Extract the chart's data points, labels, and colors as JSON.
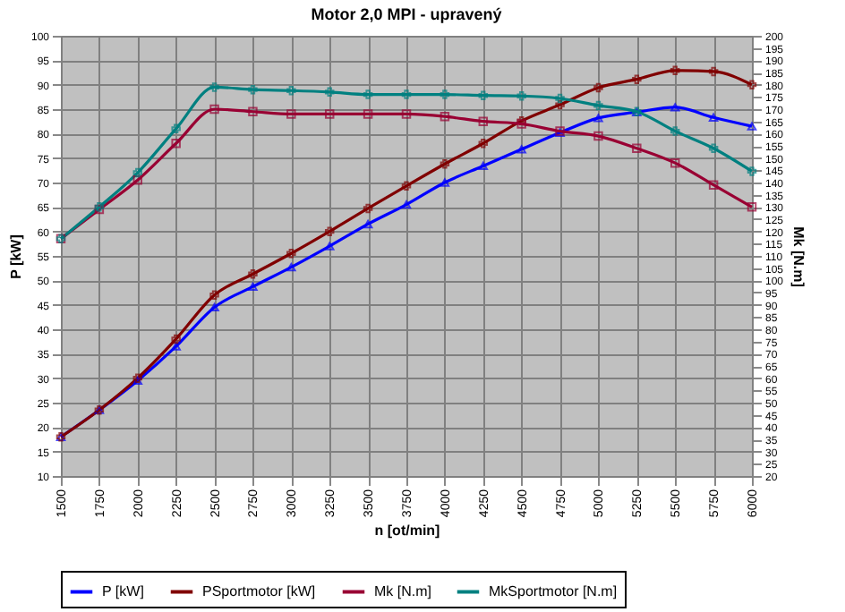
{
  "chart_data": {
    "type": "line",
    "title": "Motor 2,0 MPI - upravený",
    "xlabel": "n [ot/min]",
    "ylabel": "P [kW]",
    "y2label": "Mk [N.m]",
    "x": [
      1500,
      1750,
      2000,
      2250,
      2500,
      2750,
      3000,
      3250,
      3500,
      3750,
      4000,
      4250,
      4500,
      4750,
      5000,
      5250,
      5500,
      5750,
      6000
    ],
    "xlim": [
      1500,
      6000
    ],
    "xticks": [
      1500,
      1750,
      2000,
      2250,
      2500,
      2750,
      3000,
      3250,
      3500,
      3750,
      4000,
      4250,
      4500,
      4750,
      5000,
      5250,
      5500,
      5750,
      6000
    ],
    "ylim": [
      10,
      100
    ],
    "yticks": [
      10,
      15,
      20,
      25,
      30,
      35,
      40,
      45,
      50,
      55,
      60,
      65,
      70,
      75,
      80,
      85,
      90,
      95,
      100
    ],
    "y2lim": [
      20,
      200
    ],
    "y2ticks": [
      20,
      25,
      30,
      35,
      40,
      45,
      50,
      55,
      60,
      65,
      70,
      75,
      80,
      85,
      90,
      95,
      100,
      105,
      110,
      115,
      120,
      125,
      130,
      135,
      140,
      145,
      150,
      155,
      160,
      165,
      170,
      175,
      180,
      185,
      190,
      195,
      200
    ],
    "grid": true,
    "legend": "bottom",
    "line_style": "solid",
    "series": [
      {
        "name": "P [kW]",
        "color": "#0000ff",
        "marker": "triangle",
        "values": [
          18,
          23.5,
          29.5,
          36.5,
          44.5,
          48.7,
          52.7,
          57,
          61.5,
          65.5,
          70,
          73.4,
          76.8,
          80.2,
          83.2,
          84.4,
          85.4,
          83.3,
          81.5
        ]
      },
      {
        "name": "PSportmotor [kW]",
        "color": "#800000",
        "marker": "cross",
        "values": [
          18,
          23.5,
          30,
          38,
          47,
          51.3,
          55.5,
          60,
          64.7,
          69.3,
          73.8,
          78,
          82.6,
          85.9,
          89.4,
          91.1,
          92.9,
          92.7,
          90
        ]
      },
      {
        "name": "Mk [N.m]",
        "color": "#990033",
        "marker": "square",
        "axis": "y2",
        "values": [
          117,
          129,
          141,
          156,
          170,
          169,
          168,
          168,
          168,
          168,
          167,
          165,
          164,
          161,
          159,
          154,
          148,
          139,
          130
        ]
      },
      {
        "name": "MkSportmotor [N.m]",
        "color": "#008080",
        "marker": "cross",
        "axis": "y2",
        "values": [
          117,
          130,
          144,
          162,
          179,
          178,
          177.6,
          177,
          176,
          176,
          176,
          175.6,
          175.4,
          174.4,
          171.5,
          169,
          161,
          154,
          144.6
        ]
      }
    ]
  }
}
